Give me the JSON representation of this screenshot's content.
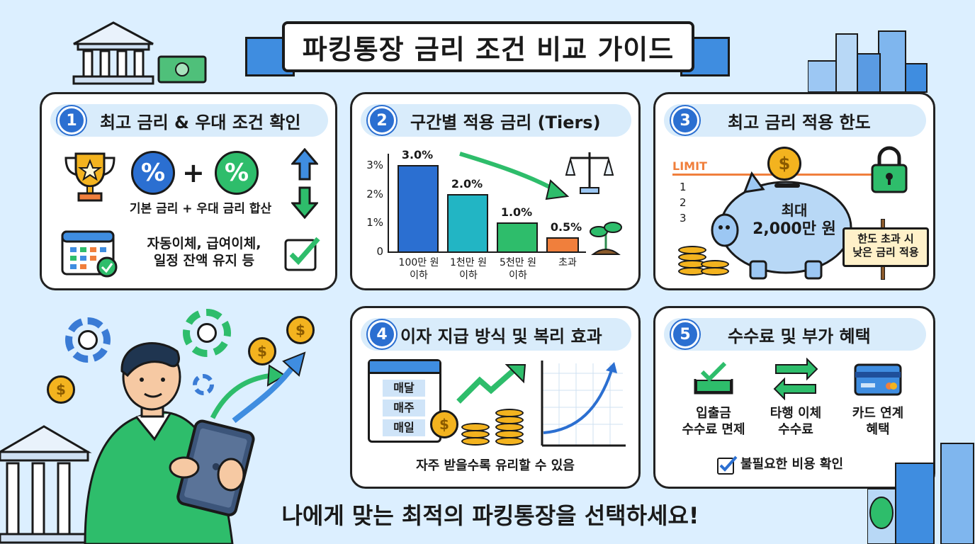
{
  "title": "파킹통장 금리 조건 비교 가이드",
  "footer": "나에게 맞는 최적의 파킹통장을 선택하세요!",
  "colors": {
    "blue": "#2b6fd1",
    "green": "#2ebd6b",
    "orange": "#f07f3c",
    "gold": "#f3b31f",
    "bg": "#dcefff"
  },
  "panel1": {
    "num": "1",
    "header": "최고 금리 & 우대 조건 확인",
    "percent": "%",
    "plus": "+",
    "combine_text": "기본 금리 + 우대 금리 합산",
    "conditions_line1": "자동이체, 급여이체,",
    "conditions_line2": "일정 잔액 유지 등",
    "icons": [
      "trophy-icon",
      "percent-icon",
      "arrow-up-icon",
      "arrow-down-icon",
      "calendar-icon",
      "checkbox-icon"
    ]
  },
  "panel2": {
    "num": "2",
    "header": "구간별 적용 금리 (Tiers)"
  },
  "chart_data": {
    "type": "bar",
    "categories": [
      "100만 원 이하",
      "1천만 원 이하",
      "5천만 원 이하",
      "초과"
    ],
    "cat_lines": [
      [
        "100만 원",
        "이하"
      ],
      [
        "1천만 원",
        "이하"
      ],
      [
        "5천만 원",
        "이하"
      ],
      [
        "초과",
        ""
      ]
    ],
    "values": [
      3.0,
      2.0,
      1.0,
      0.5
    ],
    "value_labels": [
      "3.0%",
      "2.0%",
      "1.0%",
      "0.5%"
    ],
    "bar_colors": [
      "#2b6fd1",
      "#22b5c4",
      "#2ebd6b",
      "#f07f3c"
    ],
    "yticks": [
      "0",
      "1%",
      "2%",
      "3%"
    ],
    "ylim": [
      0,
      3.4
    ]
  },
  "panel3": {
    "num": "3",
    "header": "최고 금리 적용 한도",
    "limit_label": "LIMIT",
    "scale": [
      "1",
      "2",
      "3"
    ],
    "pig_line1": "최대",
    "pig_line2": "2,000만 원",
    "sign_line1": "한도 초과 시",
    "sign_line2": "낮은 금리 적용",
    "coin_symbol": "$"
  },
  "panel4": {
    "num": "4",
    "header": "이자 지급 방식 및 복리 효과",
    "schedule": [
      "매달",
      "매주",
      "매일"
    ],
    "note": "자주 받을수록 유리할 수 있음",
    "coin_symbol": "$"
  },
  "panel5": {
    "num": "5",
    "header": "수수료 및 부가 혜택",
    "items": [
      {
        "line1": "입출금",
        "line2": "수수료 면제",
        "icon": "tray-check-icon"
      },
      {
        "line1": "타행 이체",
        "line2": "수수료",
        "icon": "transfer-icon"
      },
      {
        "line1": "카드 연계",
        "line2": "혜택",
        "icon": "credit-card-icon"
      }
    ],
    "check_note": "불필요한 비용 확인"
  },
  "coin_symbol": "$"
}
